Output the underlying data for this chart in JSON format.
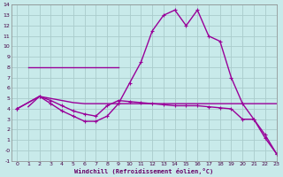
{
  "background_color": "#c8eaea",
  "grid_color": "#aacccc",
  "line_color": "#990099",
  "xlim": [
    -0.5,
    23
  ],
  "ylim": [
    -1,
    14
  ],
  "xlabel": "Windchill (Refroidissement éolien,°C)",
  "xlabel_color": "#660066",
  "xticks": [
    0,
    1,
    2,
    3,
    4,
    5,
    6,
    7,
    8,
    9,
    10,
    11,
    12,
    13,
    14,
    15,
    16,
    17,
    18,
    19,
    20,
    21,
    22,
    23
  ],
  "yticks": [
    -1,
    0,
    1,
    2,
    3,
    4,
    5,
    6,
    7,
    8,
    9,
    10,
    11,
    12,
    13,
    14
  ],
  "ytick_labels": [
    "-1",
    "-0",
    "1",
    "2",
    "3",
    "4",
    "5",
    "6",
    "7",
    "8",
    "9",
    "10",
    "11",
    "12",
    "13",
    "14"
  ],
  "series": [
    {
      "x": [
        1,
        9
      ],
      "y": [
        8,
        8
      ],
      "marker": false
    },
    {
      "x": [
        1,
        2,
        3,
        4,
        5,
        6,
        7,
        8,
        9,
        10,
        11,
        12,
        13,
        14,
        15,
        16,
        17,
        18,
        19,
        20,
        21,
        22,
        23
      ],
      "y": [
        4.2,
        5.2,
        5.0,
        4.8,
        4.6,
        4.5,
        4.5,
        4.5,
        4.5,
        4.5,
        4.5,
        4.5,
        4.5,
        4.5,
        4.5,
        4.5,
        4.5,
        4.5,
        4.5,
        4.5,
        4.5,
        4.5,
        4.5
      ],
      "marker": false
    },
    {
      "x": [
        0,
        2,
        3,
        4,
        5,
        6,
        7,
        8,
        9,
        10,
        11,
        12,
        13,
        14,
        15,
        16,
        17,
        18,
        19,
        20,
        21,
        22,
        23
      ],
      "y": [
        4.0,
        5.2,
        4.8,
        4.3,
        3.8,
        3.5,
        3.3,
        4.3,
        4.8,
        4.7,
        4.6,
        4.5,
        4.4,
        4.3,
        4.3,
        4.3,
        4.2,
        4.1,
        4.0,
        3.0,
        3.0,
        1.5,
        -0.3
      ],
      "marker": true
    },
    {
      "x": [
        0,
        2,
        3,
        4,
        5,
        6,
        7,
        8,
        9,
        10,
        11,
        12,
        13,
        14,
        15,
        16,
        17,
        18,
        19,
        20,
        21,
        22,
        23
      ],
      "y": [
        4.0,
        5.2,
        4.5,
        3.8,
        3.3,
        2.8,
        2.8,
        3.3,
        4.5,
        6.5,
        8.5,
        11.5,
        13.0,
        13.5,
        12.0,
        13.5,
        11.0,
        10.5,
        7.0,
        4.5,
        3.0,
        1.2,
        -0.3
      ],
      "marker": true
    }
  ]
}
